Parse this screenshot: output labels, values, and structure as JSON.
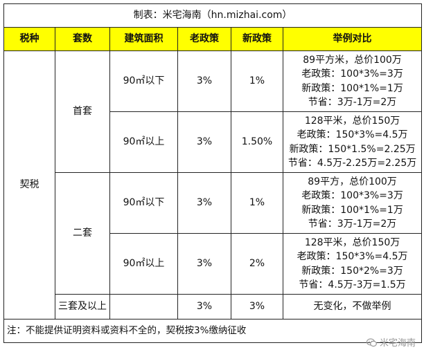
{
  "title": "制表：米宅海南（hn.mizhai.com）",
  "headers": [
    "税种",
    "套数",
    "建筑面积",
    "老政策",
    "新政策",
    "举例对比"
  ],
  "tax_type": "契税",
  "groups": [
    {
      "label": "首套",
      "rows": [
        {
          "area": "90㎡以下",
          "old": "3%",
          "new": "1%",
          "example": [
            "89平方米，总价100万",
            "老政策：100*3%=3万",
            "新政策：100*1%=1万",
            "节省：3万-1万=2万"
          ]
        },
        {
          "area": "90㎡以上",
          "old": "3%",
          "new": "1.50%",
          "example": [
            "128平米，总价150万",
            "老政策：150*3%=4.5万",
            "新政策：150*1.5%=2.25万",
            "节省：4.5万-2.25万=2.25万"
          ]
        }
      ]
    },
    {
      "label": "二套",
      "rows": [
        {
          "area": "90㎡以下",
          "old": "3%",
          "new": "1%",
          "example": [
            "89平方，总价100万",
            "老政策：100*3%=3万",
            "新政策：100*1%=1万",
            "节省：3万-1万=2万"
          ]
        },
        {
          "area": "90㎡以上",
          "old": "3%",
          "new": "2%",
          "example": [
            "128平米，总价150万",
            "老政策：150*3%=4.5万",
            "新政策：150*2%=3万",
            "节省：4.5万-3万=1.5万"
          ]
        }
      ]
    }
  ],
  "third": {
    "label": "三套及以上",
    "area": "",
    "old": "3%",
    "new": "3%",
    "example": "无变化，不做举例"
  },
  "note": "注：不能提供证明资料或资料不全的，契税按3%缴纳征收",
  "watermark": {
    "text": "米宅海南",
    "icon": "wechat-icon"
  },
  "colors": {
    "header_bg": "#ffff00",
    "border": "#222222"
  }
}
